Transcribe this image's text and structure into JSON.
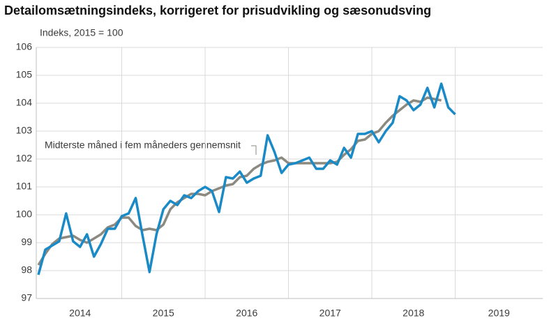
{
  "chart_data": {
    "type": "line",
    "title": "Detailomsætningsindeks, korrigeret for prisudvikling og sæsonudsving",
    "ylabel": "Indeks, 2015 = 100",
    "annotation": "Midterste måned i fem måneders gennemsnit",
    "x": [
      2014,
      2014.083,
      2014.167,
      2014.25,
      2014.333,
      2014.417,
      2014.5,
      2014.583,
      2014.667,
      2014.75,
      2014.833,
      2014.917,
      2015,
      2015.083,
      2015.167,
      2015.25,
      2015.333,
      2015.417,
      2015.5,
      2015.583,
      2015.667,
      2015.75,
      2015.833,
      2015.917,
      2016,
      2016.083,
      2016.167,
      2016.25,
      2016.333,
      2016.417,
      2016.5,
      2016.583,
      2016.667,
      2016.75,
      2016.833,
      2016.917,
      2017,
      2017.083,
      2017.167,
      2017.25,
      2017.333,
      2017.417,
      2017.5,
      2017.583,
      2017.667,
      2017.75,
      2017.833,
      2017.917,
      2018,
      2018.083,
      2018.167,
      2018.25,
      2018.333,
      2018.417,
      2018.5,
      2018.583,
      2018.667,
      2018.75,
      2018.833,
      2018.917,
      2019
    ],
    "series": [
      {
        "name": "Indeks",
        "color": "#1a8ac6",
        "values": [
          97.85,
          98.75,
          98.9,
          99.05,
          100.05,
          99.05,
          98.85,
          99.3,
          98.5,
          98.95,
          99.5,
          99.5,
          99.95,
          100.05,
          100.6,
          99.25,
          97.95,
          99.3,
          100.2,
          100.5,
          100.35,
          100.7,
          100.6,
          100.85,
          101.0,
          100.85,
          100.1,
          101.35,
          101.3,
          101.55,
          101.15,
          101.3,
          101.4,
          102.85,
          102.25,
          101.5,
          101.8,
          101.85,
          101.95,
          102.05,
          101.65,
          101.65,
          101.95,
          101.8,
          102.4,
          102.05,
          102.9,
          102.9,
          103.0,
          102.6,
          103.0,
          103.3,
          104.25,
          104.1,
          103.75,
          103.95,
          104.55,
          103.85,
          104.7,
          103.85,
          103.6
        ]
      },
      {
        "name": "Midterste måned i fem måneders gennemsnit",
        "color": "#8c8a80",
        "values": [
          98.2,
          98.6,
          98.95,
          99.15,
          99.2,
          99.25,
          99.1,
          99.0,
          99.15,
          99.3,
          99.55,
          99.65,
          99.9,
          99.9,
          99.6,
          99.45,
          99.5,
          99.45,
          99.65,
          100.2,
          100.45,
          100.6,
          100.75,
          100.75,
          100.7,
          100.85,
          100.95,
          101.05,
          101.1,
          101.35,
          101.4,
          101.65,
          101.8,
          101.9,
          101.95,
          102.05,
          101.85,
          101.85,
          101.85,
          101.85,
          101.85,
          101.85,
          101.85,
          101.9,
          102.15,
          102.35,
          102.65,
          102.7,
          102.9,
          103.0,
          103.3,
          103.55,
          103.75,
          103.95,
          104.1,
          104.05,
          104.2,
          104.15,
          104.1,
          null,
          null
        ]
      }
    ],
    "xlim": [
      2013.975,
      2020.05
    ],
    "xticks": [
      {
        "value": 2014,
        "label": "2014"
      },
      {
        "value": 2015,
        "label": "2015"
      },
      {
        "value": 2016,
        "label": "2016"
      },
      {
        "value": 2017,
        "label": "2017"
      },
      {
        "value": 2018,
        "label": "2018"
      },
      {
        "value": 2019,
        "label": "2019"
      }
    ],
    "ylim": [
      97,
      106
    ],
    "yticks": [
      97,
      98,
      99,
      100,
      101,
      102,
      103,
      104,
      105,
      106
    ],
    "grid": true
  }
}
